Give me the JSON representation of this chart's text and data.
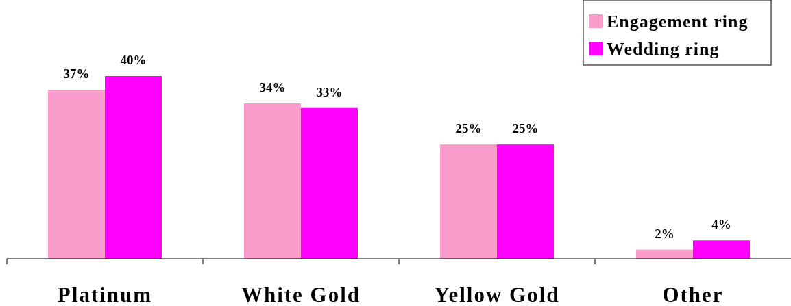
{
  "chart_data": {
    "type": "bar",
    "categories": [
      "Platinum",
      "White Gold",
      "Yellow Gold",
      "Other"
    ],
    "series": [
      {
        "name": "Engagement ring",
        "color": "#f99ccb",
        "values": [
          37,
          34,
          25,
          2
        ],
        "value_labels": [
          "37%",
          "34%",
          "25%",
          "2%"
        ]
      },
      {
        "name": "Wedding ring",
        "color": "#ff00ff",
        "values": [
          40,
          33,
          25,
          4
        ],
        "value_labels": [
          "40%",
          "33%",
          "25%",
          "4%"
        ]
      }
    ],
    "legend": "top right"
  }
}
